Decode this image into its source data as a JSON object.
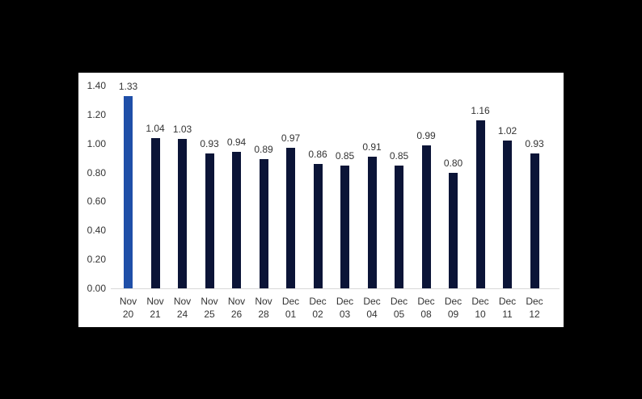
{
  "chart_data": {
    "type": "bar",
    "title": "",
    "xlabel": "",
    "ylabel": "",
    "ylim": [
      0,
      1.4
    ],
    "yticks": [
      "0.00",
      "0.20",
      "0.40",
      "0.60",
      "0.80",
      "1.00",
      "1.20",
      "1.40"
    ],
    "grid": false,
    "legend": null,
    "categories": [
      "Nov 20",
      "Nov 21",
      "Nov 24",
      "Nov 25",
      "Nov 26",
      "Nov 28",
      "Dec 01",
      "Dec 02",
      "Dec 03",
      "Dec 04",
      "Dec 05",
      "Dec 08",
      "Dec 09",
      "Dec 10",
      "Dec 11",
      "Dec 12"
    ],
    "category_lines": [
      [
        "Nov",
        "20"
      ],
      [
        "Nov",
        "21"
      ],
      [
        "Nov",
        "24"
      ],
      [
        "Nov",
        "25"
      ],
      [
        "Nov",
        "26"
      ],
      [
        "Nov",
        "28"
      ],
      [
        "Dec",
        "01"
      ],
      [
        "Dec",
        "02"
      ],
      [
        "Dec",
        "03"
      ],
      [
        "Dec",
        "04"
      ],
      [
        "Dec",
        "05"
      ],
      [
        "Dec",
        "08"
      ],
      [
        "Dec",
        "09"
      ],
      [
        "Dec",
        "10"
      ],
      [
        "Dec",
        "11"
      ],
      [
        "Dec",
        "12"
      ]
    ],
    "values": [
      1.33,
      1.04,
      1.03,
      0.93,
      0.94,
      0.89,
      0.97,
      0.86,
      0.85,
      0.91,
      0.85,
      0.99,
      0.8,
      1.16,
      1.02,
      0.93
    ],
    "value_labels": [
      "1.33",
      "1.04",
      "1.03",
      "0.93",
      "0.94",
      "0.89",
      "0.97",
      "0.86",
      "0.85",
      "0.91",
      "0.85",
      "0.99",
      "0.80",
      "1.16",
      "1.02",
      "0.93"
    ],
    "highlight_index": 0,
    "colors": {
      "highlight": "#1f4fa8",
      "default": "#0b1437"
    }
  }
}
